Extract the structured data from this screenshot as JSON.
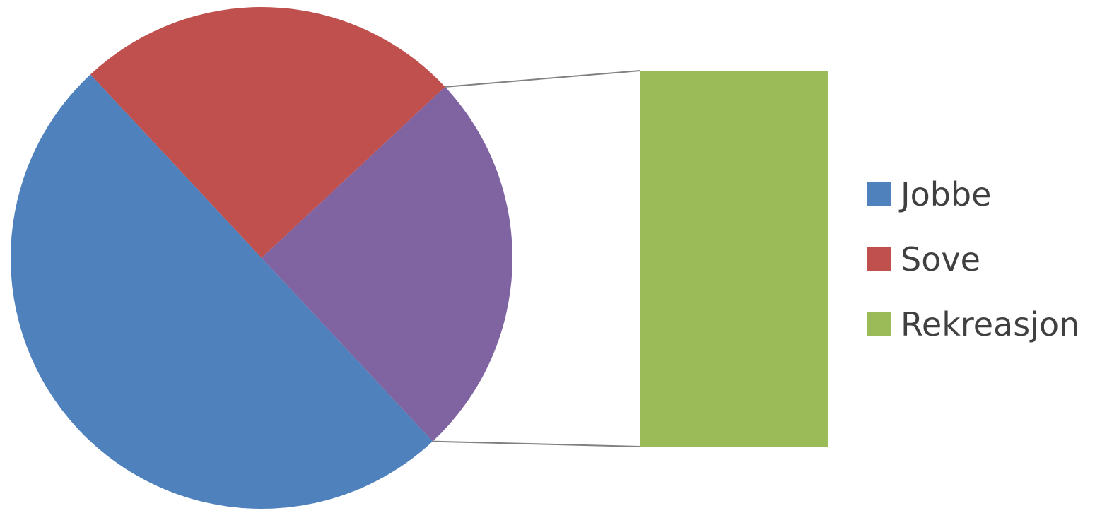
{
  "chart_data": {
    "type": "pie",
    "subtype": "bar-of-pie",
    "title": "",
    "legend_position": "right",
    "slices": [
      {
        "label": "Jobbe",
        "value": 50,
        "color": "#4F81BD"
      },
      {
        "label": "Sove",
        "value": 25,
        "color": "#C0504D"
      },
      {
        "label": "Rekreasjon",
        "value": 25,
        "color": "#8064A2",
        "bar_color": "#9BBB59"
      }
    ],
    "secondary_bar": {
      "series": [
        {
          "label": "Rekreasjon",
          "value": 25,
          "color": "#9BBB59"
        }
      ]
    },
    "legend": [
      {
        "label": "Jobbe",
        "color": "#4F81BD"
      },
      {
        "label": "Sove",
        "color": "#C0504D"
      },
      {
        "label": "Rekreasjon",
        "color": "#9BBB59"
      }
    ]
  }
}
